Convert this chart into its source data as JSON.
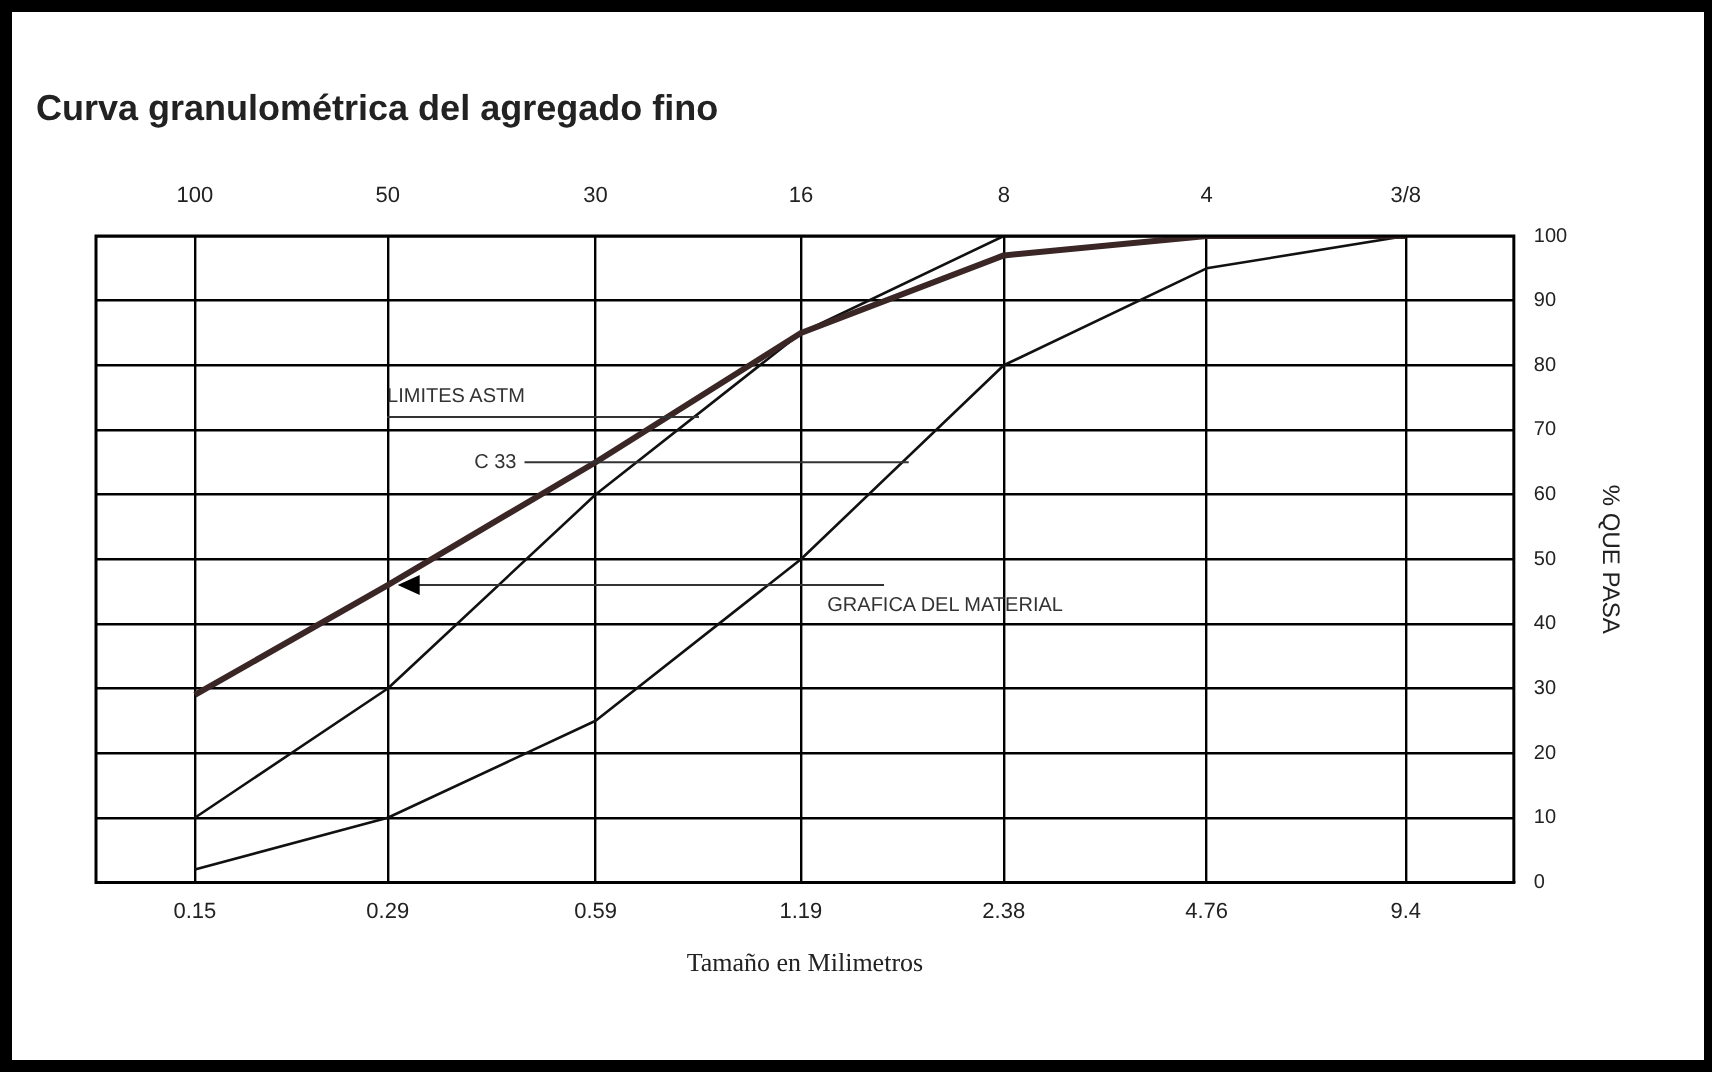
{
  "chart_data": {
    "type": "line",
    "title": "Curva granulométrica del agregado fino",
    "xlabel": "Tamaño en Milimetros",
    "ylabel": "% QUE PASA",
    "log": "x",
    "x": [
      0.15,
      0.29,
      0.59,
      1.19,
      2.38,
      4.76,
      9.4
    ],
    "xlim": [
      0.107,
      13.6
    ],
    "xticks": [
      0.15,
      0.29,
      0.59,
      1.19,
      2.38,
      4.76,
      9.4
    ],
    "ylim": [
      0,
      100
    ],
    "yticks": [
      0,
      10,
      20,
      30,
      40,
      50,
      60,
      70,
      80,
      90,
      100
    ],
    "grid": true,
    "legend": false,
    "series": [
      {
        "color": "#3b2626",
        "values": [
          29,
          46,
          65,
          85,
          97,
          100,
          100
        ]
      },
      {
        "color": "#111111",
        "values": [
          10,
          30,
          60,
          85,
          100,
          100,
          100
        ]
      },
      {
        "color": "#111111",
        "values": [
          2,
          10,
          25,
          50,
          80,
          95,
          100
        ]
      }
    ],
    "annotations": [
      {
        "text": "LIMITES ASTM",
        "x": 0.84,
        "y": 72
      },
      {
        "text": "C 33",
        "x": 1.72,
        "y": 65
      },
      {
        "text": "GRAFICA DEL MATERIAL",
        "x": 0.3,
        "y": 46
      },
      "100",
      "50",
      "30",
      "16",
      "8",
      "4",
      "3/8"
    ]
  }
}
